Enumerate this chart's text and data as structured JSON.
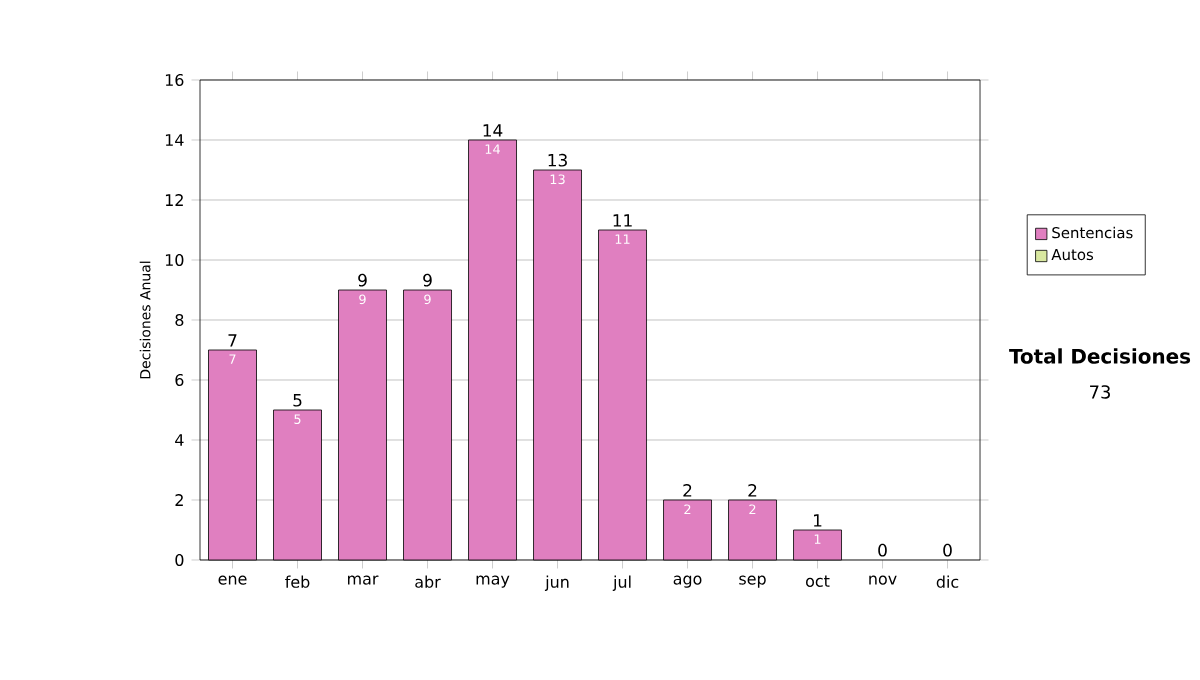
{
  "chart_data": {
    "type": "bar",
    "stacked": true,
    "ylabel": "Decisiones Anual",
    "categories": [
      "ene",
      "feb",
      "mar",
      "abr",
      "may",
      "jun",
      "jul",
      "ago",
      "sep",
      "oct",
      "nov",
      "dic"
    ],
    "series": [
      {
        "name": "Sentencias",
        "color": "#e07fc0",
        "values": [
          7,
          5,
          9,
          9,
          14,
          13,
          11,
          2,
          2,
          1,
          0,
          0
        ],
        "value_labels": [
          "7",
          "5",
          "9",
          "9",
          "14",
          "13",
          "11",
          "2",
          "2",
          "1",
          null,
          null
        ]
      },
      {
        "name": "Autos",
        "color": "#d9e8a0",
        "values": [
          0,
          0,
          0,
          0,
          0,
          0,
          0,
          0,
          0,
          0,
          0,
          0
        ]
      }
    ],
    "totals": [
      "7",
      "5",
      "9",
      "9",
      "14",
      "13",
      "11",
      "2",
      "2",
      "1",
      "0",
      "0"
    ],
    "ylim": [
      0,
      16
    ],
    "yticks": [
      0,
      2,
      4,
      6,
      8,
      10,
      12,
      14,
      16
    ],
    "grid": "y",
    "legend": "right",
    "annotations": [
      "Total Decisiones",
      "73"
    ]
  }
}
